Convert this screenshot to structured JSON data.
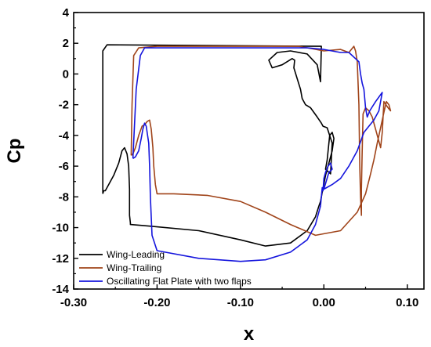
{
  "chart_data": {
    "type": "line",
    "title": "",
    "xlabel": "x",
    "ylabel": "Cp",
    "xlim": [
      -0.3,
      0.12
    ],
    "ylim": [
      -14,
      4
    ],
    "xticks": [
      "-0.30",
      "-0.20",
      "-0.10",
      "0.00",
      "0.10"
    ],
    "xtick_values": [
      -0.3,
      -0.2,
      -0.1,
      0.0,
      0.1
    ],
    "yticks": [
      "4",
      "2",
      "0",
      "-2",
      "-4",
      "-6",
      "-8",
      "-10",
      "-12",
      "-14"
    ],
    "ytick_values": [
      4,
      2,
      0,
      -2,
      -4,
      -6,
      -8,
      -10,
      -12,
      -14
    ],
    "grid": false,
    "legend_position": "bottom-left",
    "series": [
      {
        "name": "Wing-Leading",
        "color": "#000000",
        "x": [
          -0.265,
          -0.264,
          -0.262,
          -0.258,
          -0.252,
          -0.246,
          -0.242,
          -0.239,
          -0.236,
          -0.234,
          -0.233,
          -0.233,
          -0.232,
          -0.232,
          -0.21,
          -0.15,
          -0.1,
          -0.07,
          -0.04,
          -0.02,
          -0.01,
          -0.006,
          -0.004,
          -0.003,
          -0.002,
          -0.001,
          0.0,
          0.002,
          0.006,
          0.01,
          0.012,
          0.01,
          0.007,
          0.004,
          0.002,
          0.008,
          0.01,
          0.004,
          -0.001,
          -0.003,
          -0.008,
          -0.016,
          -0.022,
          -0.026,
          -0.028,
          -0.032,
          -0.036,
          -0.035,
          -0.038,
          -0.05,
          -0.062,
          -0.066,
          -0.056,
          -0.04,
          -0.02,
          -0.008,
          -0.004,
          -0.003,
          -0.26,
          -0.265,
          -0.265
        ],
        "y": [
          -7.8,
          -7.6,
          -7.6,
          -7.2,
          -6.6,
          -5.8,
          -5.0,
          -4.8,
          -5.2,
          -6.0,
          -7.5,
          -9.2,
          -9.7,
          -9.8,
          -9.9,
          -10.2,
          -10.8,
          -11.2,
          -11.0,
          -10.2,
          -9.3,
          -8.6,
          -8.3,
          -8.0,
          -7.7,
          -7.5,
          -7.2,
          -6.6,
          -5.8,
          -5.0,
          -4.2,
          -3.8,
          -4.0,
          -5.6,
          -6.2,
          -6.5,
          -4.5,
          -3.5,
          -3.4,
          -3.2,
          -2.8,
          -2.2,
          -2.0,
          -1.6,
          -1.0,
          -0.3,
          0.4,
          0.9,
          1.0,
          0.6,
          0.4,
          0.9,
          1.4,
          1.5,
          1.3,
          0.6,
          -0.5,
          1.8,
          1.9,
          1.5,
          -7.8
        ]
      },
      {
        "name": "Wing-Trailing",
        "color": "#a0441a",
        "x": [
          -0.231,
          -0.229,
          -0.226,
          -0.222,
          -0.218,
          -0.215,
          -0.212,
          -0.209,
          -0.207,
          -0.205,
          -0.204,
          -0.202,
          -0.2,
          -0.18,
          -0.14,
          -0.1,
          -0.07,
          -0.04,
          -0.01,
          0.02,
          0.04,
          0.05,
          0.056,
          0.06,
          0.064,
          0.068,
          0.072,
          0.075,
          0.078,
          0.08,
          0.077,
          0.072,
          0.07,
          0.068,
          0.062,
          0.058,
          0.054,
          0.05,
          0.047,
          0.046,
          0.045,
          0.045,
          0.044,
          0.043,
          0.042,
          0.04,
          0.038,
          0.036,
          0.03,
          0.02,
          0.0,
          -0.03,
          -0.08,
          -0.15,
          -0.2,
          -0.222,
          -0.228,
          -0.23,
          -0.231
        ],
        "y": [
          -5.3,
          -5.2,
          -4.8,
          -4.0,
          -3.4,
          -3.3,
          -3.1,
          -3.0,
          -3.6,
          -4.8,
          -6.0,
          -7.2,
          -7.8,
          -7.8,
          -7.9,
          -8.3,
          -9.0,
          -9.8,
          -10.5,
          -10.2,
          -9.0,
          -7.8,
          -6.5,
          -5.6,
          -4.5,
          -3.5,
          -2.5,
          -1.8,
          -2.0,
          -2.4,
          -2.2,
          -1.8,
          -3.8,
          -4.8,
          -3.6,
          -2.8,
          -2.4,
          -2.2,
          -2.6,
          -5.0,
          -7.5,
          -9.2,
          -8.0,
          -6.0,
          -2.0,
          0.8,
          1.5,
          1.8,
          1.4,
          1.6,
          1.5,
          1.8,
          1.8,
          1.8,
          1.8,
          1.7,
          1.2,
          -2.0,
          -5.3
        ]
      },
      {
        "name": "Oscillating Flat Plate with two flaps",
        "color": "#1515dd",
        "x": [
          -0.229,
          -0.226,
          -0.222,
          -0.219,
          -0.217,
          -0.215,
          -0.213,
          -0.21,
          -0.209,
          -0.208,
          -0.206,
          -0.2,
          -0.15,
          -0.1,
          -0.07,
          -0.04,
          -0.02,
          -0.01,
          -0.004,
          -0.002,
          -0.001,
          0.0,
          0.002,
          0.005,
          0.008,
          0.01,
          0.006,
          0.0,
          0.01,
          0.02,
          0.03,
          0.04,
          0.048,
          0.06,
          0.066,
          0.07,
          0.066,
          0.062,
          0.055,
          0.052,
          0.05,
          0.048,
          0.046,
          0.044,
          0.042,
          0.03,
          0.02,
          0.0,
          -0.02,
          -0.06,
          -0.12,
          -0.18,
          -0.205,
          -0.215,
          -0.22,
          -0.225,
          -0.229
        ],
        "y": [
          -5.5,
          -5.4,
          -5.0,
          -4.2,
          -3.6,
          -3.2,
          -3.4,
          -4.5,
          -6.0,
          -8.0,
          -10.5,
          -11.5,
          -12.0,
          -12.2,
          -12.1,
          -11.6,
          -10.8,
          -9.8,
          -8.6,
          -7.4,
          -7.6,
          -6.8,
          -6.4,
          -6.0,
          -5.8,
          -6.2,
          -6.4,
          -7.5,
          -7.2,
          -6.8,
          -6.0,
          -5.0,
          -3.8,
          -3.0,
          -2.4,
          -1.2,
          -1.5,
          -1.8,
          -2.4,
          -2.8,
          -2.2,
          -1.0,
          -0.6,
          0.0,
          0.8,
          1.4,
          1.4,
          1.6,
          1.7,
          1.7,
          1.7,
          1.7,
          1.7,
          1.7,
          1.2,
          -1.0,
          -5.5
        ]
      }
    ]
  }
}
